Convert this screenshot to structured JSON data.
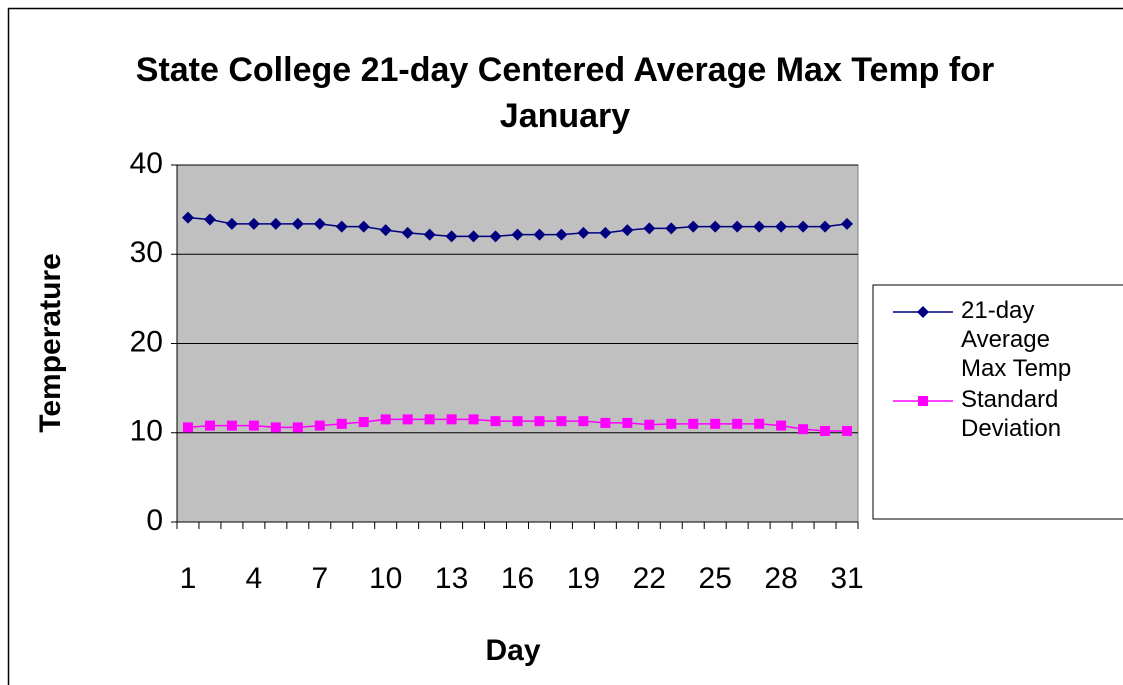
{
  "chart_data": {
    "type": "line",
    "title": "State College 21-day Centered Average Max Temp for January",
    "x_label": "Day",
    "y_label": "Temperature",
    "categories": [
      "1",
      null,
      null,
      "4",
      null,
      null,
      "7",
      null,
      null,
      "10",
      null,
      null,
      "13",
      null,
      null,
      "16",
      null,
      null,
      "19",
      null,
      null,
      "22",
      null,
      null,
      "25",
      null,
      null,
      "28",
      null,
      null,
      "31"
    ],
    "series": [
      {
        "name": "21-day Average Max Temp",
        "color": "#000080",
        "marker": "diamond",
        "values": [
          34.1,
          33.9,
          33.4,
          33.4,
          33.4,
          33.4,
          33.4,
          33.1,
          33.1,
          32.7,
          32.4,
          32.2,
          32.0,
          32.0,
          32.0,
          32.2,
          32.2,
          32.2,
          32.4,
          32.4,
          32.7,
          32.9,
          32.9,
          33.1,
          33.1,
          33.1,
          33.1,
          33.1,
          33.1,
          33.1,
          33.4
        ]
      },
      {
        "name": "Standard Deviation",
        "color": "#ff00ff",
        "marker": "square",
        "values": [
          10.6,
          10.8,
          10.8,
          10.8,
          10.6,
          10.6,
          10.8,
          11.0,
          11.2,
          11.5,
          11.5,
          11.5,
          11.5,
          11.5,
          11.3,
          11.3,
          11.3,
          11.3,
          11.3,
          11.1,
          11.1,
          10.9,
          11.0,
          11.0,
          11.0,
          11.0,
          11.0,
          10.8,
          10.4,
          10.2,
          10.2
        ]
      }
    ],
    "ylim": [
      0,
      40
    ],
    "yticks": [
      0,
      10,
      20,
      30,
      40
    ],
    "grid": true,
    "plot_background": "#c0c0c0",
    "legend": "right"
  }
}
